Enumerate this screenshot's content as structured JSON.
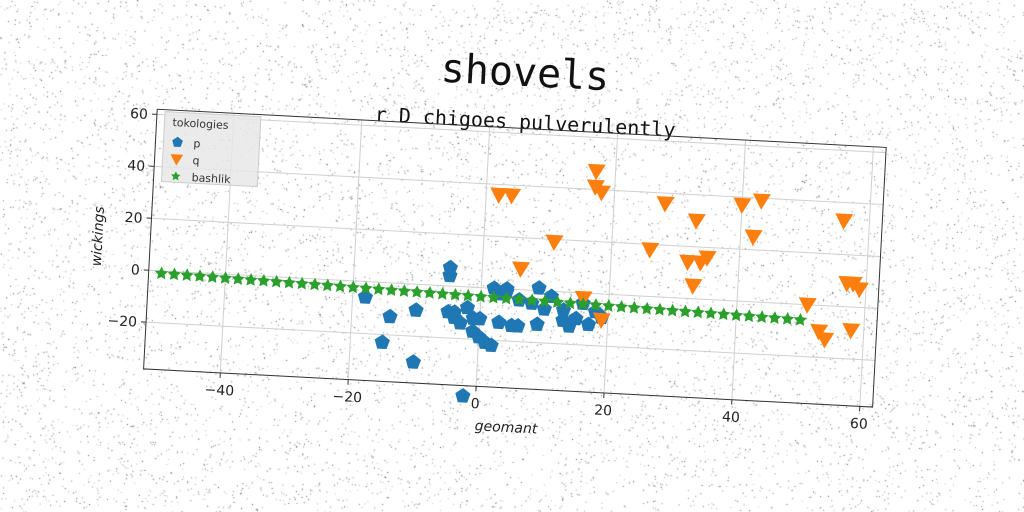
{
  "chart_data": {
    "type": "scatter",
    "title": "shovels",
    "subtitle": "r D chigoes pulverulently",
    "xlabel": "geomant",
    "ylabel": "wickings",
    "xlim": [
      -52,
      62
    ],
    "ylim": [
      -38,
      62
    ],
    "xticks": [
      -40,
      -20,
      0,
      20,
      40,
      60
    ],
    "yticks": [
      -20,
      0,
      20,
      40,
      60
    ],
    "grid": true,
    "legend": {
      "title": "tokologies",
      "position": "top-left"
    },
    "series": [
      {
        "name": "p",
        "marker": "pentagon",
        "color": "#1f77b4",
        "points": [
          [
            -18,
            -6
          ],
          [
            -14,
            -13
          ],
          [
            -15,
            -23
          ],
          [
            -10,
            -10
          ],
          [
            -10,
            -30
          ],
          [
            -5,
            7
          ],
          [
            -5,
            4
          ],
          [
            -5,
            -10
          ],
          [
            -4,
            -12
          ],
          [
            -3,
            -14
          ],
          [
            -2,
            -8
          ],
          [
            -1,
            -12
          ],
          [
            -1,
            -17
          ],
          [
            0,
            -19
          ],
          [
            0,
            -12
          ],
          [
            1,
            -21
          ],
          [
            2,
            -22
          ],
          [
            2,
            0
          ],
          [
            3,
            -2
          ],
          [
            3,
            -13
          ],
          [
            4,
            0
          ],
          [
            4,
            -1
          ],
          [
            5,
            -14
          ],
          [
            6,
            -14
          ],
          [
            6,
            -4
          ],
          [
            8,
            -5
          ],
          [
            9,
            -13
          ],
          [
            9,
            1
          ],
          [
            10,
            -7
          ],
          [
            11,
            -2
          ],
          [
            13,
            -11
          ],
          [
            13,
            -7
          ],
          [
            14,
            -13
          ],
          [
            15,
            -10
          ],
          [
            16,
            -4
          ],
          [
            17,
            -12
          ],
          [
            18,
            -7
          ],
          [
            19,
            -9
          ],
          [
            -2,
            -42
          ],
          [
            -4,
            -10
          ]
        ]
      },
      {
        "name": "q",
        "marker": "triangle-down",
        "color": "#ff7f0e",
        "points": [
          [
            2,
            36
          ],
          [
            4,
            36
          ],
          [
            6,
            8
          ],
          [
            11,
            19
          ],
          [
            16,
            -2
          ],
          [
            17,
            47
          ],
          [
            17,
            41
          ],
          [
            18,
            39
          ],
          [
            19,
            -10
          ],
          [
            26,
            18
          ],
          [
            28,
            36
          ],
          [
            32,
            14
          ],
          [
            33,
            30
          ],
          [
            33,
            5
          ],
          [
            34,
            14
          ],
          [
            35,
            16
          ],
          [
            40,
            37
          ],
          [
            42,
            25
          ],
          [
            43,
            39
          ],
          [
            51,
            0
          ],
          [
            53,
            -10
          ],
          [
            54,
            -13
          ],
          [
            56,
            33
          ],
          [
            57,
            9
          ],
          [
            58,
            9
          ],
          [
            59,
            7
          ],
          [
            58,
            -9
          ]
        ]
      },
      {
        "name": "bashlik",
        "marker": "star",
        "color": "#2ca02c",
        "points": [
          [
            -50,
            -1
          ],
          [
            -48,
            -1.1
          ],
          [
            -46,
            -1.2
          ],
          [
            -44,
            -1.3
          ],
          [
            -42,
            -1.4
          ],
          [
            -40,
            -1.5
          ],
          [
            -38,
            -1.6
          ],
          [
            -36,
            -1.7
          ],
          [
            -34,
            -1.8
          ],
          [
            -32,
            -1.9
          ],
          [
            -30,
            -2
          ],
          [
            -28,
            -2.1
          ],
          [
            -26,
            -2.2
          ],
          [
            -24,
            -2.3
          ],
          [
            -22,
            -2.4
          ],
          [
            -20,
            -2.5
          ],
          [
            -18,
            -2.6
          ],
          [
            -16,
            -2.7
          ],
          [
            -14,
            -2.8
          ],
          [
            -12,
            -2.9
          ],
          [
            -10,
            -3
          ],
          [
            -8,
            -3.1
          ],
          [
            -6,
            -3.2
          ],
          [
            -4,
            -3.3
          ],
          [
            -2,
            -3.4
          ],
          [
            0,
            -3.5
          ],
          [
            2,
            -3.6
          ],
          [
            4,
            -3.7
          ],
          [
            6,
            -3.8
          ],
          [
            8,
            -3.9
          ],
          [
            10,
            -4
          ],
          [
            12,
            -4.1
          ],
          [
            14,
            -4.2
          ],
          [
            16,
            -4.3
          ],
          [
            18,
            -4.4
          ],
          [
            20,
            -4.5
          ],
          [
            22,
            -4.6
          ],
          [
            24,
            -4.7
          ],
          [
            26,
            -4.8
          ],
          [
            28,
            -4.9
          ],
          [
            30,
            -5
          ],
          [
            32,
            -5.1
          ],
          [
            34,
            -5.2
          ],
          [
            36,
            -5.3
          ],
          [
            38,
            -5.4
          ],
          [
            40,
            -5.5
          ],
          [
            42,
            -5.6
          ],
          [
            44,
            -5.7
          ],
          [
            46,
            -5.8
          ],
          [
            48,
            -5.9
          ],
          [
            50,
            -6
          ]
        ]
      }
    ]
  }
}
